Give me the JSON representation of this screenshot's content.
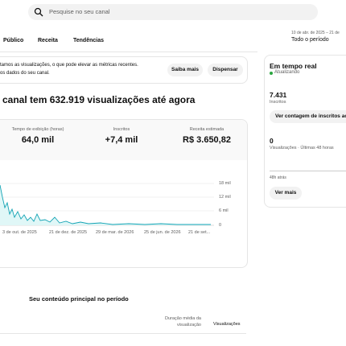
{
  "search": {
    "placeholder": "Pesquise no seu canal"
  },
  "period": {
    "range": "10 de abr. de 2025 – 21 de",
    "label": "Todo o período"
  },
  "tabs": [
    "Público",
    "Receita",
    "Tendências"
  ],
  "banner": {
    "line1": "tamos as visualizações, o que pode elevar as métricas recentes.",
    "line2": "os dados do seu canal.",
    "buttons": [
      "Saiba mais",
      "Dispensar"
    ]
  },
  "heading": "canal tem 632.919 visualizações até agora",
  "metrics": [
    {
      "label": "Tempo de exibição (horas)",
      "value": "64,0 mil"
    },
    {
      "label": "Inscritos",
      "value": "+7,4 mil"
    },
    {
      "label": "Receita estimada",
      "value": "R$ 3.650,82"
    }
  ],
  "chart": {
    "yticks": [
      "18 mil",
      "12 mil",
      "6 mil",
      "0"
    ],
    "xlabels": [
      "3 de out. de 2025",
      "21 de dez. de 2025",
      "29 de mar. de 2026",
      "25 de jun. de 2026",
      "21 de set..."
    ]
  },
  "realtime": {
    "title": "Em tempo real",
    "status": "Atualizando",
    "subscribers": "7.431",
    "subscribers_label": "Inscritos",
    "button": "Ver contagem de inscritos ao",
    "views": "0",
    "views_label": "Visualizações · Últimas 48 horas",
    "ago": "48h atrás",
    "more": "Ver mais"
  },
  "content": {
    "title": "Seu conteúdo principal no período",
    "col1": "Duração média da visualização",
    "col2": "Visualizações"
  }
}
